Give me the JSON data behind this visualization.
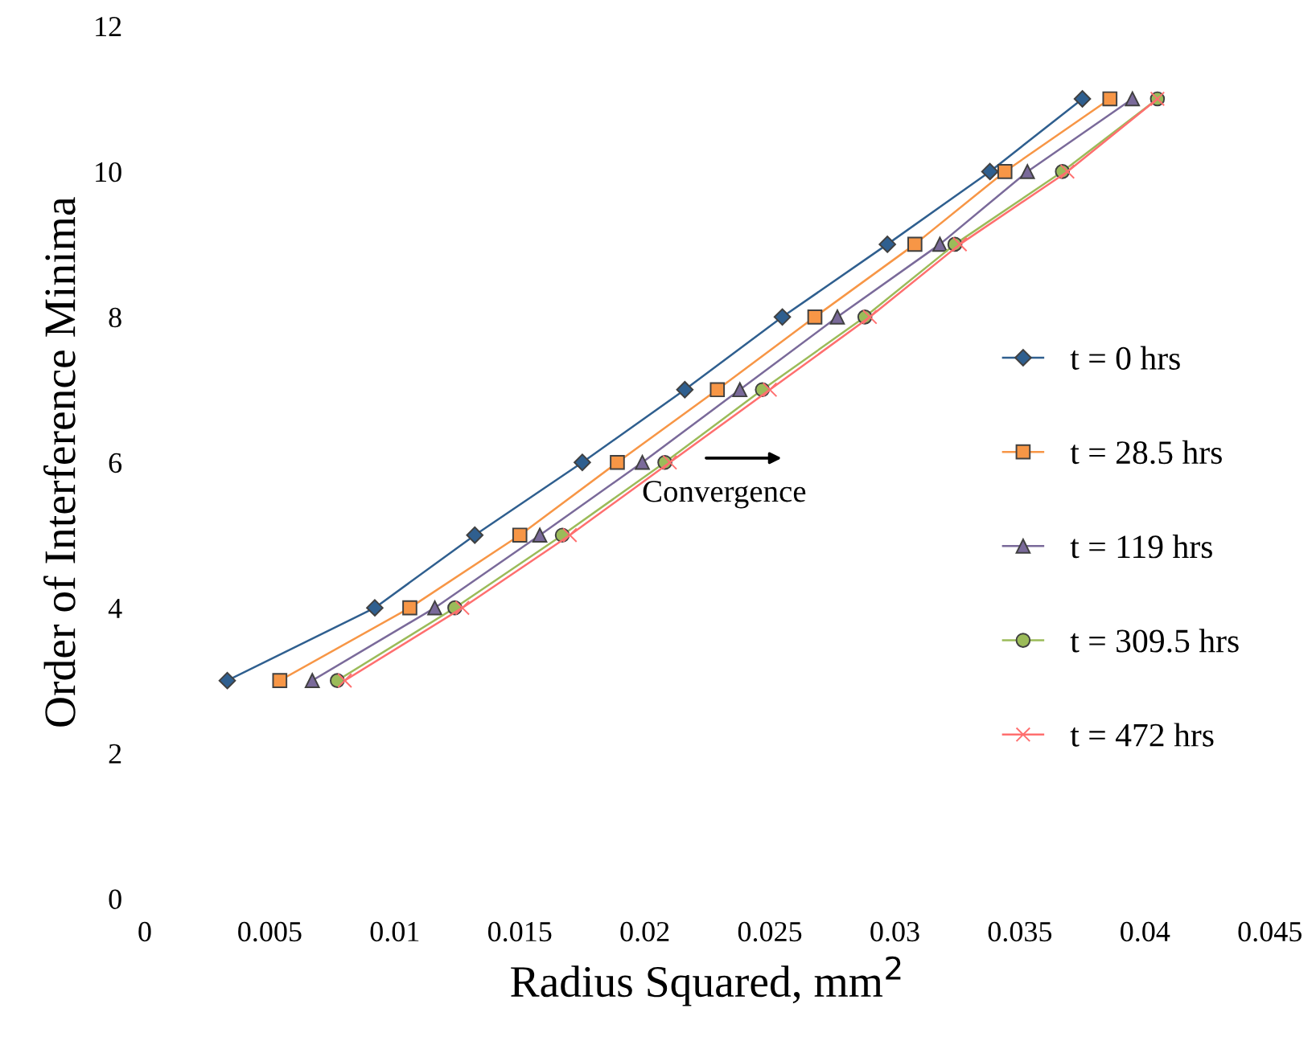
{
  "chart_data": {
    "type": "line",
    "xlabel": "Radius Squared, mm$^{2}$",
    "ylabel": "Order of Interference Minima",
    "annotations": [
      "Convergence"
    ],
    "xlim": [
      0,
      0.045
    ],
    "xticks": [
      0,
      0.005,
      0.01,
      0.015,
      0.02,
      0.025,
      0.03,
      0.035,
      0.04,
      0.045
    ],
    "ylim": [
      0,
      12
    ],
    "yticks": [
      0,
      2,
      4,
      6,
      8,
      10,
      12
    ],
    "grid": false,
    "legend": "right",
    "line_style": "solid",
    "series": [
      {
        "name": "t = 0 hrs",
        "color": "#2f5f8f",
        "marker": "diamond",
        "x": [
          0.0033,
          0.0092,
          0.0132,
          0.0175,
          0.0216,
          0.0255,
          0.0297,
          0.0338,
          0.0375
        ],
        "values": [
          3,
          4,
          5,
          6,
          7,
          8,
          9,
          10,
          11
        ]
      },
      {
        "name": "t = 28.5 hrs",
        "color": "#f79646",
        "marker": "square",
        "x": [
          0.0054,
          0.0106,
          0.015,
          0.0189,
          0.0229,
          0.0268,
          0.0308,
          0.0344,
          0.0386
        ],
        "values": [
          3,
          4,
          5,
          6,
          7,
          8,
          9,
          10,
          11
        ]
      },
      {
        "name": "t = 119 hrs",
        "color": "#7a6a9a",
        "marker": "triangle",
        "x": [
          0.0067,
          0.0116,
          0.0158,
          0.0199,
          0.0238,
          0.0277,
          0.0318,
          0.0353,
          0.0395
        ],
        "values": [
          3,
          4,
          5,
          6,
          7,
          8,
          9,
          10,
          11
        ]
      },
      {
        "name": "t = 309.5 hrs",
        "color": "#9bbb59",
        "marker": "circle",
        "x": [
          0.0077,
          0.0124,
          0.0167,
          0.0208,
          0.0247,
          0.0288,
          0.0324,
          0.0367,
          0.0405
        ],
        "values": [
          3,
          4,
          5,
          6,
          7,
          8,
          9,
          10,
          11
        ]
      },
      {
        "name": "t = 472 hrs",
        "color": "#ff6f6f",
        "marker": "cross",
        "x": [
          0.008,
          0.0127,
          0.017,
          0.021,
          0.025,
          0.029,
          0.0326,
          0.0369,
          0.0405
        ],
        "values": [
          3,
          4,
          5,
          6,
          7,
          8,
          9,
          10,
          11
        ]
      }
    ]
  }
}
